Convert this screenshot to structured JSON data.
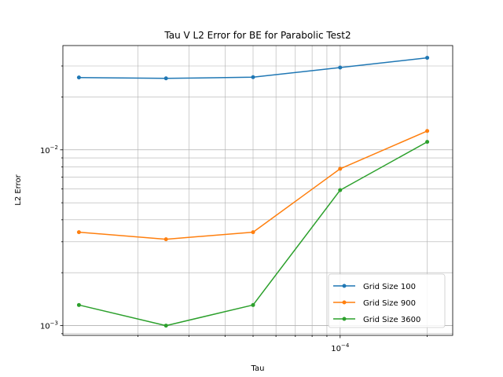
{
  "chart_data": {
    "type": "line",
    "title": "Tau V L2 Error for BE for Parabolic Test2",
    "xlabel": "Tau",
    "ylabel": "L2 Error",
    "xscale": "log",
    "yscale": "log",
    "xlim": [
      1.1e-05,
      0.000245
    ],
    "ylim": [
      0.00088,
      0.0392
    ],
    "grid": "on (major and minor, both axes)",
    "legend_position": "lower right",
    "x": [
      1.25e-05,
      2.5e-05,
      5e-05,
      0.0001,
      0.0002
    ],
    "x_tick_labels": [
      "10^-4"
    ],
    "y_tick_labels": [
      "10^-3",
      "10^-2"
    ],
    "series": [
      {
        "name": "Grid Size 100",
        "color": "#1f77b4",
        "values": [
          0.0258,
          0.0255,
          0.0259,
          0.0294,
          0.0334
        ]
      },
      {
        "name": "Grid Size 900",
        "color": "#ff7f0e",
        "values": [
          0.0034,
          0.0031,
          0.0034,
          0.0078,
          0.0128
        ]
      },
      {
        "name": "Grid Size 3600",
        "color": "#2ca02c",
        "values": [
          0.00131,
          0.001,
          0.00131,
          0.0059,
          0.0111
        ]
      }
    ]
  }
}
